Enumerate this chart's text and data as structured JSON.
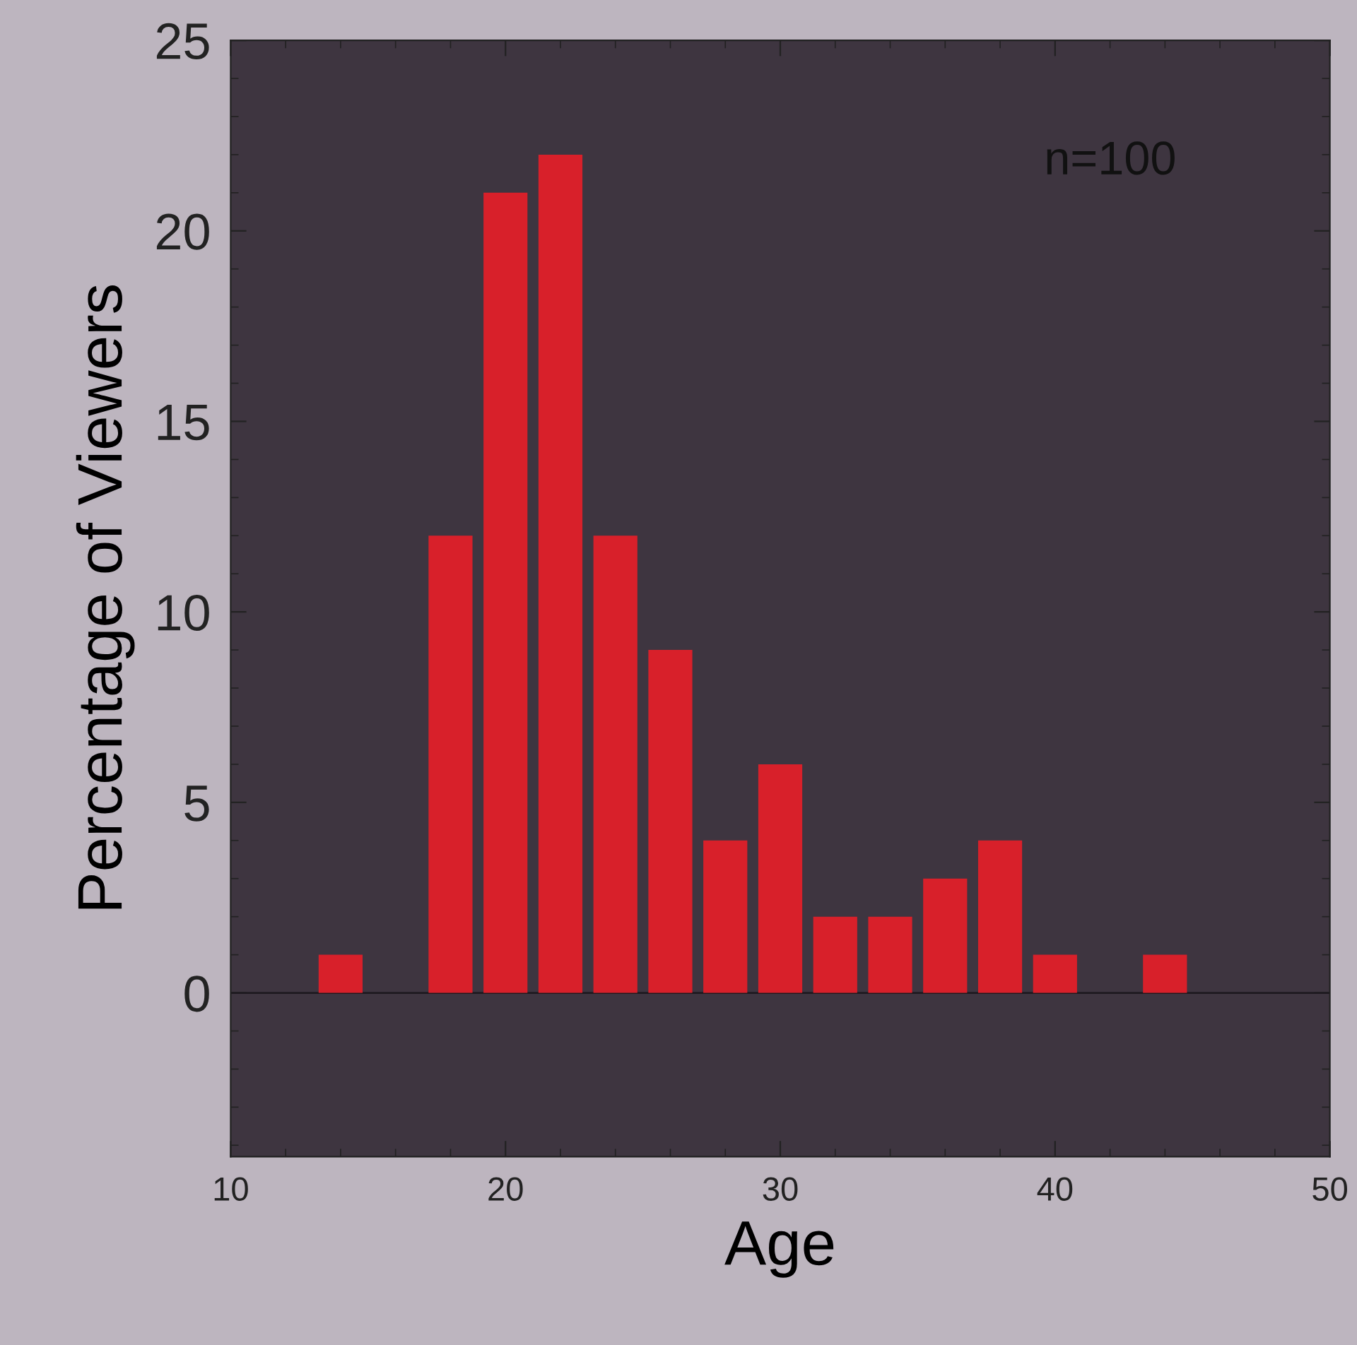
{
  "chart_data": {
    "type": "bar",
    "xlabel": "Age",
    "ylabel": "Percentage of Viewers",
    "annotations": [
      "n=100"
    ],
    "x": [
      14,
      18,
      20,
      22,
      24,
      26,
      28,
      30,
      32,
      34,
      36,
      38,
      40,
      44
    ],
    "values": [
      1,
      12,
      21,
      22,
      12,
      9,
      4,
      6,
      2,
      2,
      3,
      4,
      1,
      1
    ],
    "color": "#d8202a",
    "xlim": [
      10,
      50
    ],
    "xticks": [
      10,
      20,
      30,
      40,
      50
    ],
    "ylim": [
      -4.3,
      25
    ],
    "yticks": [
      0,
      5,
      10,
      15,
      20,
      25
    ],
    "ref_lines": [
      {
        "axis": "y",
        "value": 0,
        "color": "#1e1a20"
      }
    ],
    "grid": false,
    "legend": false
  }
}
